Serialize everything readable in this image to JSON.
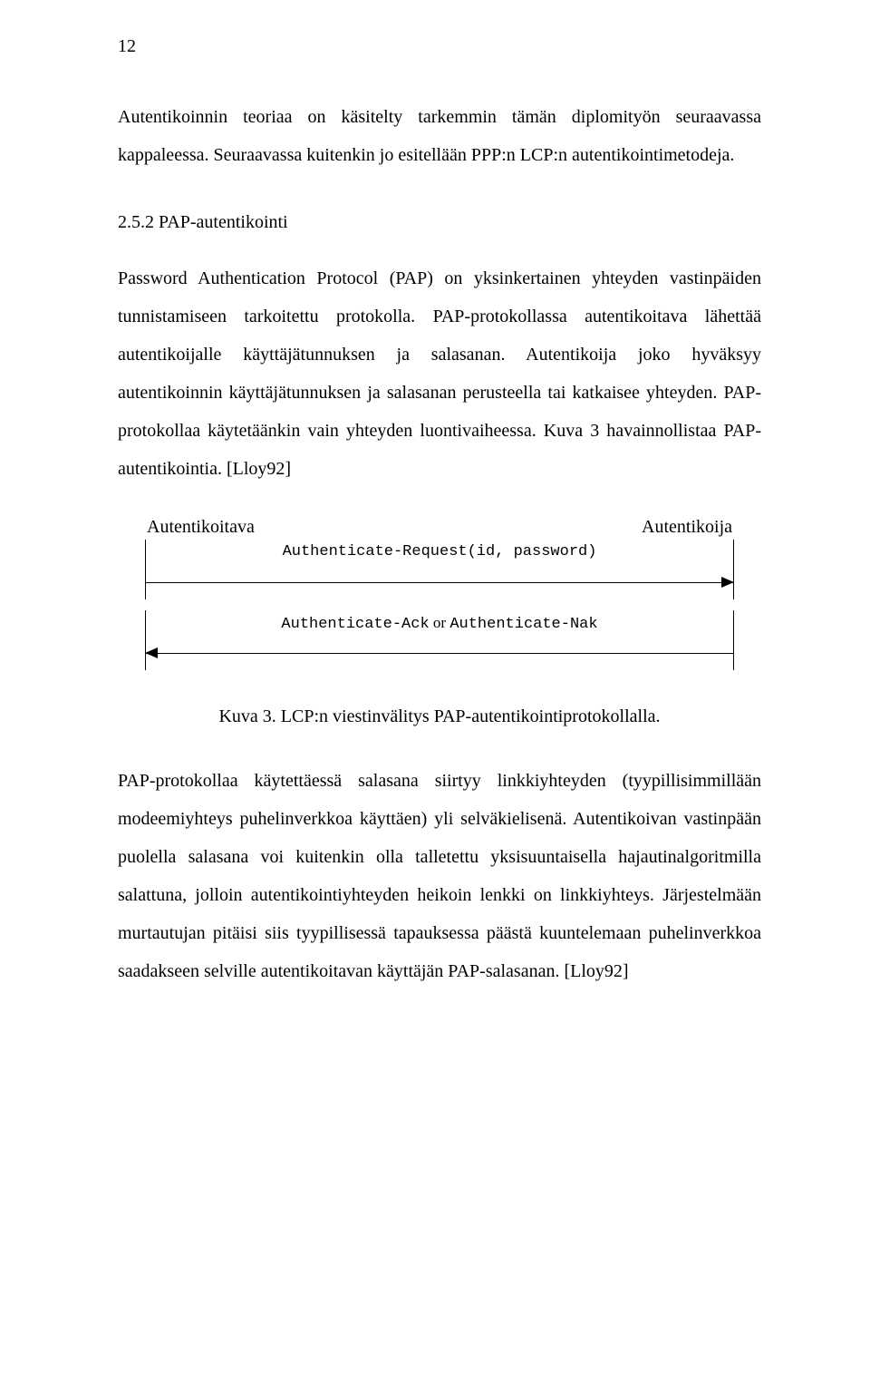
{
  "page_number": "12",
  "para1": "Autentikoinnin teoriaa on käsitelty tarkemmin tämän diplomityön seuraavassa kappaleessa. Seuraavassa kuitenkin jo esitellään PPP:n LCP:n autentikointimetodeja.",
  "section_heading": "2.5.2 PAP-autentikointi",
  "para2": "Password Authentication Protocol (PAP) on yksinkertainen yhteyden vastinpäiden tunnistamiseen tarkoitettu protokolla. PAP-protokollassa autentikoitava lähettää autentikoijalle käyttäjätunnuksen ja salasanan. Autentikoija joko hyväksyy autentikoinnin käyttäjätunnuksen ja salasanan perusteella tai katkaisee yhteyden. PAP-protokollaa käytetäänkin vain yhteyden luontivaiheessa. Kuva 3 havainnollistaa PAP-autentikointia. [Lloy92]",
  "diagram": {
    "left_label": "Autentikoitava",
    "right_label": "Autentikoija",
    "msg1": "Authenticate-Request(id, password)",
    "msg2_a": "Authenticate-Ack",
    "msg2_or": " or ",
    "msg2_b": "Authenticate-Nak"
  },
  "caption": "Kuva 3. LCP:n viestinvälitys PAP-autentikointiprotokollalla.",
  "para3": "PAP-protokollaa käytettäessä salasana siirtyy linkkiyhteyden (tyypillisimmillään modeemiyhteys puhelinverkkoa käyttäen) yli selväkielisenä. Autentikoivan vastinpään puolella salasana voi kuitenkin olla talletettu yksisuuntaisella hajautinalgoritmilla salattuna, jolloin autentikointiyhteyden heikoin lenkki on linkkiyhteys. Järjestelmään murtautujan pitäisi siis tyypillisessä tapauksessa päästä kuuntelemaan puhelinverkkoa saadakseen selville autentikoitavan käyttäjän PAP-salasanan. [Lloy92]"
}
